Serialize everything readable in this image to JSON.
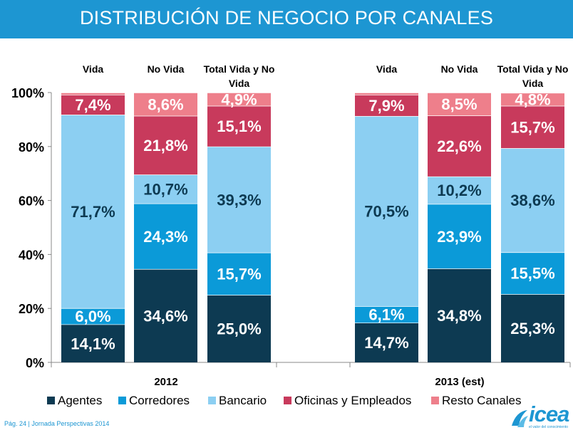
{
  "page": {
    "title": "DISTRIBUCIÓN DE NEGOCIO POR CANALES",
    "footer": "Pág. 24 | Jornada Perspectivas 2014",
    "logo": {
      "word": "icea",
      "tagline": "el valor del conocimiento"
    }
  },
  "chart_data": {
    "type": "bar",
    "stacked": true,
    "y_ticks": [
      "0%",
      "20%",
      "40%",
      "60%",
      "80%",
      "100%"
    ],
    "ylim": [
      0,
      100
    ],
    "grid": false,
    "legend_position": "bottom",
    "groups": [
      {
        "label": "2012",
        "bars": [
          {
            "header": [
              "Vida"
            ],
            "values": [
              14.1,
              6.0,
              71.7,
              7.4,
              0.8
            ],
            "labels": [
              "14,1%",
              "6,0%",
              "71,7%",
              "7,4%",
              ""
            ]
          },
          {
            "header": [
              "No Vida"
            ],
            "values": [
              34.6,
              24.3,
              10.7,
              21.8,
              8.6
            ],
            "labels": [
              "34,6%",
              "24,3%",
              "10,7%",
              "21,8%",
              "8,6%"
            ]
          },
          {
            "header": [
              "Total Vida y No",
              "Vida"
            ],
            "values": [
              25.0,
              15.7,
              39.3,
              15.1,
              4.9
            ],
            "labels": [
              "25,0%",
              "15,7%",
              "39,3%",
              "15,1%",
              "4,9%"
            ]
          }
        ]
      },
      {
        "label": "2013 (est)",
        "bars": [
          {
            "header": [
              "Vida"
            ],
            "values": [
              14.7,
              6.1,
              70.5,
              7.9,
              0.8
            ],
            "labels": [
              "14,7%",
              "6,1%",
              "70,5%",
              "7,9%",
              ""
            ]
          },
          {
            "header": [
              "No Vida"
            ],
            "values": [
              34.8,
              23.9,
              10.2,
              22.6,
              8.5
            ],
            "labels": [
              "34,8%",
              "23,9%",
              "10,2%",
              "22,6%",
              "8,5%"
            ]
          },
          {
            "header": [
              "Total Vida y No",
              "Vida"
            ],
            "values": [
              25.3,
              15.5,
              38.6,
              15.7,
              4.8
            ],
            "labels": [
              "25,3%",
              "15,5%",
              "38,6%",
              "15,7%",
              "4,8%"
            ]
          }
        ]
      }
    ],
    "series": [
      {
        "name": "Agentes",
        "color": "#0d3a52",
        "label_color": "#ffffff"
      },
      {
        "name": "Corredores",
        "color": "#0b9ad8",
        "label_color": "#ffffff"
      },
      {
        "name": "Bancario",
        "color": "#8ccff2",
        "label_color": "#0d3a52"
      },
      {
        "name": "Oficinas y Empleados",
        "color": "#c83a5c",
        "label_color": "#ffffff"
      },
      {
        "name": "Resto Canales",
        "color": "#ee7f8b",
        "label_color": "#ffffff"
      }
    ]
  }
}
